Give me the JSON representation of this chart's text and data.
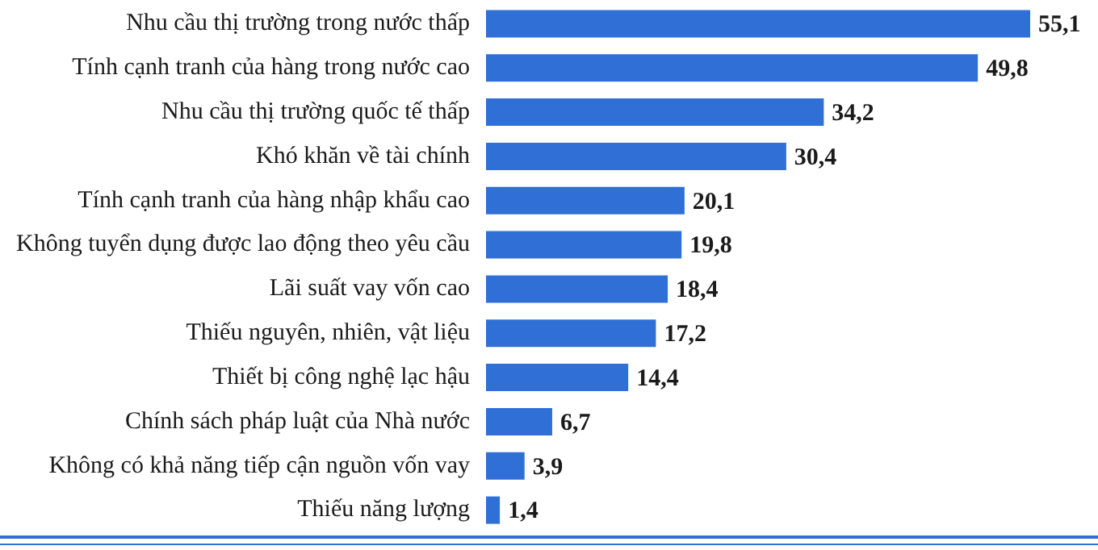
{
  "chart_data": {
    "type": "bar",
    "orientation": "horizontal",
    "categories": [
      "Nhu cầu thị trường trong nước thấp",
      "Tính cạnh tranh của hàng trong nước cao",
      "Nhu cầu thị trường quốc tế thấp",
      "Khó khăn về tài chính",
      "Tính cạnh tranh của hàng nhập khẩu cao",
      "Không tuyển dụng được lao động theo yêu cầu",
      "Lãi suất vay vốn cao",
      "Thiếu nguyên, nhiên, vật liệu",
      "Thiết bị công nghệ lạc hậu",
      "Chính sách pháp luật của Nhà nước",
      "Không có khả năng tiếp cận nguồn vốn vay",
      "Thiếu năng lượng"
    ],
    "values": [
      55.1,
      49.8,
      34.2,
      30.4,
      20.1,
      19.8,
      18.4,
      17.2,
      14.4,
      6.7,
      3.9,
      1.4
    ],
    "value_labels": [
      "55,1",
      "49,8",
      "34,2",
      "30,4",
      "20,1",
      "19,8",
      "18,4",
      "17,2",
      "14,4",
      "6,7",
      "3,9",
      "1,4"
    ],
    "color": "#2f6fd6",
    "tick_labels": "y"
  }
}
